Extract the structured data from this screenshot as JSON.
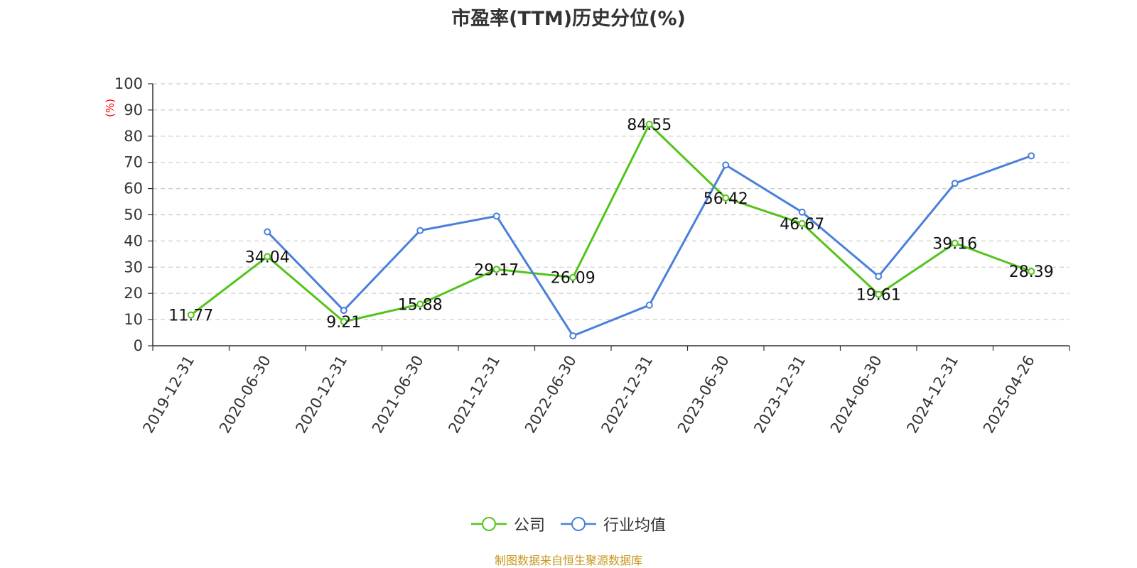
{
  "chart_data": {
    "type": "line",
    "title": "市盈率(TTM)历史分位(%)",
    "ylabel": "(%)",
    "xlabel": "",
    "ylim": [
      0,
      100
    ],
    "yticks": [
      0,
      10,
      20,
      30,
      40,
      50,
      60,
      70,
      80,
      90,
      100
    ],
    "grid": true,
    "legend_position": "bottom-center",
    "categories": [
      "2019-12-31",
      "2020-06-30",
      "2020-12-31",
      "2021-06-30",
      "2021-12-31",
      "2022-06-30",
      "2022-12-31",
      "2023-06-30",
      "2023-12-31",
      "2024-06-30",
      "2024-12-31",
      "2025-04-26"
    ],
    "series": [
      {
        "name": "公司",
        "color": "#52c41a",
        "values": [
          11.77,
          34.04,
          9.21,
          15.88,
          29.17,
          26.09,
          84.55,
          56.42,
          46.67,
          19.61,
          39.16,
          28.39
        ],
        "labels": [
          "11.77",
          "34.04",
          "9.21",
          "15.88",
          "29.17",
          "26.09",
          "84.55",
          "56.42",
          "46.67",
          "19.61",
          "39.16",
          "28.39"
        ]
      },
      {
        "name": "行业均值",
        "color": "#4a7fdc",
        "values": [
          null,
          43.5,
          13.5,
          44.0,
          49.5,
          3.8,
          15.5,
          69.0,
          51.0,
          26.5,
          62.0,
          72.5
        ]
      }
    ]
  },
  "source_note": "制图数据来自恒生聚源数据库",
  "colors": {
    "axis": "#333333",
    "grid": "#cccccc",
    "ylabel": "#ff0000",
    "source": "#c8961e"
  }
}
